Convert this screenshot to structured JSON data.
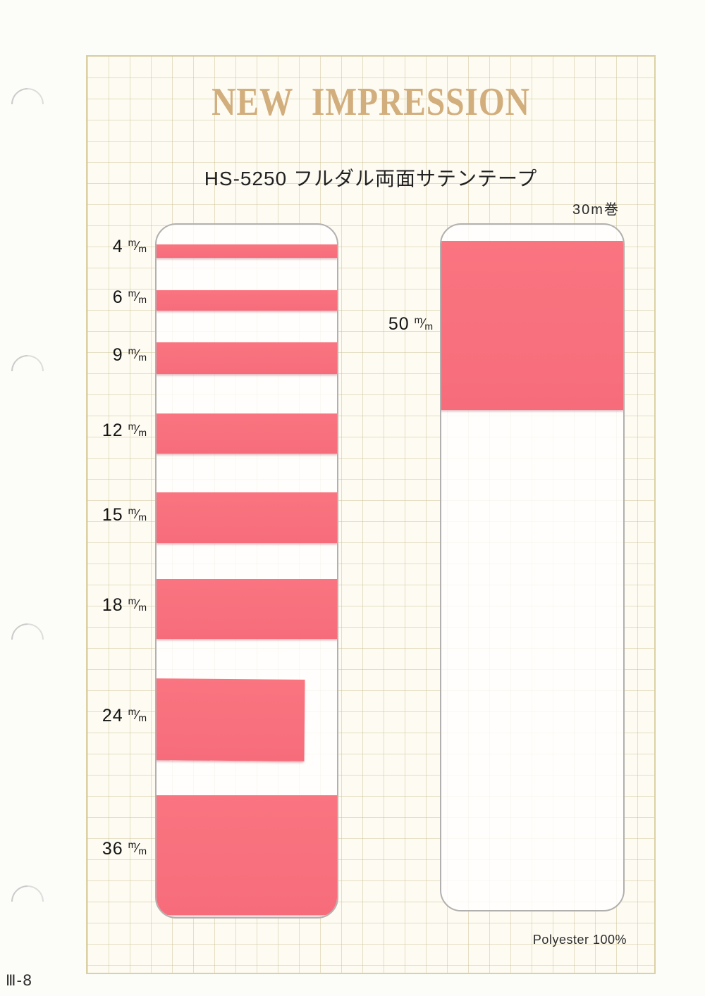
{
  "page": {
    "brand_title": "NEW IMPRESSION",
    "product_title": "HS-5250 フルダル両面サテンテープ",
    "roll_length": "30m巻",
    "material": "Polyester 100%",
    "page_number": "Ⅲ-8"
  },
  "samples": {
    "unit_numerator": "m",
    "unit_slash": "⁄",
    "unit_denominator": "m",
    "left_panel_sizes": [
      {
        "size": "4"
      },
      {
        "size": "6"
      },
      {
        "size": "9"
      },
      {
        "size": "12"
      },
      {
        "size": "15"
      },
      {
        "size": "18"
      },
      {
        "size": "24"
      },
      {
        "size": "36"
      }
    ],
    "right_panel_size": {
      "size": "50"
    }
  },
  "colors": {
    "tape": "#F8707E",
    "title_gold": "#D2AE7D"
  }
}
